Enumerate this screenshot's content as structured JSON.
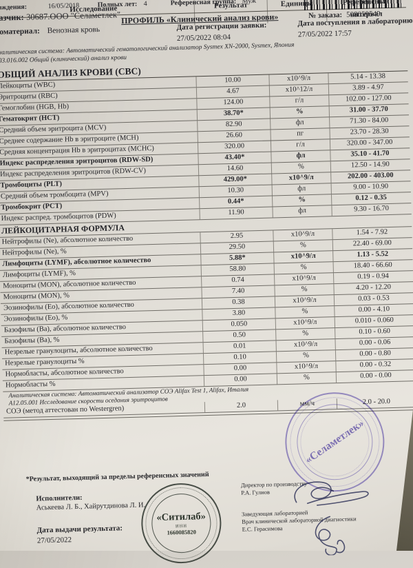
{
  "header": {
    "birth_label": "рождения:",
    "birth_value": "16/05/2018",
    "age_label": "Полных лет:",
    "age_value": "4",
    "group_label": "Референсная группа:",
    "group_value": "Муж",
    "customer_label": "казчик:",
    "customer_value": "30687.ООО \"Селаметлек\"",
    "order_label": "№ заказа:",
    "order_value": "508059549"
  },
  "table": {
    "columns": {
      "research": "Исследование",
      "result": "Результат",
      "units": "Единицы",
      "ref": "Референсный интервал"
    },
    "profile_title": "ПРОФИЛЬ «Клинический анализ крови»",
    "biomaterial_label": "иоматериал:",
    "biomaterial_value": "Венозная кровь",
    "reg_date_label": "Дата регистрации заявки:",
    "reg_date_value": "27/05/2022 08:04",
    "recv_date_label": "Дата поступления в лабораторию:",
    "recv_date_value": "27/05/2022 17:57",
    "analytic_system_1": "налитическая система: Автоматический гематологический анализатор Sysmex XN-2000, Sysmex, Япония",
    "method_code_1": "03.016.002 Общий (клинический) анализ крови",
    "section_cbc": "ОБЩИЙ АНАЛИЗ КРОВИ (СВС)",
    "rows": [
      {
        "type": "data",
        "bold": false,
        "label": "Лейкоциты (WBC)",
        "result": "10.00",
        "units": "х10^9/л",
        "ref": "5.14 - 13.38"
      },
      {
        "type": "data",
        "bold": false,
        "label": "Эритроциты (RBC)",
        "result": "4.67",
        "units": "х10^12/л",
        "ref": "3.89 - 4.97"
      },
      {
        "type": "data",
        "bold": false,
        "label": "Гемоглобин (HGB, Hb)",
        "result": "124.00",
        "units": "г/л",
        "ref": "102.00 - 127.00"
      },
      {
        "type": "data",
        "bold": true,
        "label": "Гематокрит (НСТ)",
        "result": "38.70*",
        "units": "%",
        "ref": "31.00 - 37.70"
      },
      {
        "type": "data",
        "bold": false,
        "label": "Средний объем эритроцита (MCV)",
        "result": "82.90",
        "units": "фл",
        "ref": "71.30 - 84.00"
      },
      {
        "type": "data",
        "bold": false,
        "label": "Среднее содержание Hb в эритроците (МСН)",
        "result": "26.60",
        "units": "пг",
        "ref": "23.70 - 28.30"
      },
      {
        "type": "data",
        "bold": false,
        "label": "Средняя концентрация Hb в эритроцитах (МСНС)",
        "result": "320.00",
        "units": "г/л",
        "ref": "320.00 - 347.00"
      },
      {
        "type": "data",
        "bold": true,
        "label": "Индекс распределения эритроцитов (RDW-SD)",
        "result": "43.40*",
        "units": "фл",
        "ref": "35.10 - 41.70"
      },
      {
        "type": "data",
        "bold": false,
        "label": "Индекс распределения эритроцитов (RDW-CV)",
        "result": "14.60",
        "units": "%",
        "ref": "12.50 - 14.90"
      },
      {
        "type": "data",
        "bold": true,
        "label": "Тромбоциты (PLT)",
        "result": "429.00*",
        "units": "х10^9/л",
        "ref": "202.00 - 403.00"
      },
      {
        "type": "data",
        "bold": false,
        "label": "Средний объем тромбоцита (MPV)",
        "result": "10.30",
        "units": "фл",
        "ref": "9.00 - 10.90"
      },
      {
        "type": "data",
        "bold": true,
        "label": "Тромбокрит (РСТ)",
        "result": "0.44*",
        "units": "%",
        "ref": "0.12 - 0.35"
      },
      {
        "type": "data",
        "bold": false,
        "label": "Индекс распред. тромбоцитов (PDW)",
        "result": "11.90",
        "units": "фл",
        "ref": "9.30 - 16.70"
      },
      {
        "type": "section",
        "text": "ЛЕЙКОЦИТАРНАЯ ФОРМУЛА"
      },
      {
        "type": "data",
        "bold": false,
        "label": "Нейтрофилы (Ne), абсолютное количество",
        "result": "2.95",
        "units": "х10^9/л",
        "ref": "1.54 - 7.92"
      },
      {
        "type": "data",
        "bold": false,
        "label": "Нейтрофилы (Ne), %",
        "result": "29.50",
        "units": "%",
        "ref": "22.40 - 69.00"
      },
      {
        "type": "data",
        "bold": true,
        "label": "Лимфоциты (LYMF), абсолютное количество",
        "result": "5.88*",
        "units": "х10^9/л",
        "ref": "1.13 - 5.52"
      },
      {
        "type": "data",
        "bold": false,
        "label": "Лимфоциты (LYMF), %",
        "result": "58.80",
        "units": "%",
        "ref": "18.40 - 66.60"
      },
      {
        "type": "data",
        "bold": false,
        "label": "Моноциты (MON), абсолютное количество",
        "result": "0.74",
        "units": "х10^9/л",
        "ref": "0.19 - 0.94"
      },
      {
        "type": "data",
        "bold": false,
        "label": "Моноциты (MON), %",
        "result": "7.40",
        "units": "%",
        "ref": "4.20 - 12.20"
      },
      {
        "type": "data",
        "bold": false,
        "label": "Эозинофилы (Ео), абсолютное количество",
        "result": "0.38",
        "units": "х10^9/л",
        "ref": "0.03 - 0.53"
      },
      {
        "type": "data",
        "bold": false,
        "label": "Эозинофилы (Ео), %",
        "result": "3.80",
        "units": "%",
        "ref": "0.00 - 4.10"
      },
      {
        "type": "data",
        "bold": false,
        "label": "Базофилы (Ва), абсолютное количество",
        "result": "0.050",
        "units": "х10^9/л",
        "ref": "0.010 - 0.060"
      },
      {
        "type": "data",
        "bold": false,
        "label": "Базофилы (Ва), %",
        "result": "0.50",
        "units": "%",
        "ref": "0.10 - 0.60"
      },
      {
        "type": "data",
        "bold": false,
        "label": "Незрелые гранулоциты, абсолютное количество",
        "result": "0.01",
        "units": "х10^9/л",
        "ref": "0.00 - 0.06"
      },
      {
        "type": "data",
        "bold": false,
        "label": "Незрелые гранулоциты %",
        "result": "0.10",
        "units": "%",
        "ref": "0.00 - 0.80"
      },
      {
        "type": "data",
        "bold": false,
        "label": "Нормобласты, абсолютное количество",
        "result": "0.00",
        "units": "х10^9/л",
        "ref": "0.00 - 0.32"
      },
      {
        "type": "data",
        "bold": false,
        "label": "Нормобласты %",
        "result": "0.00",
        "units": "%",
        "ref": "0.00 - 0.00"
      },
      {
        "type": "italic",
        "text": "Аналитическая система: Автоматический анализатор СОЭ Alifax Test 1, Alifax, Италия"
      },
      {
        "type": "italic",
        "text": "А12.05.001 Исследование скорости оседания эритроцитов"
      },
      {
        "type": "data",
        "bold": false,
        "label": "СОЭ (метод аттестован по Westergren)",
        "result": "2.0",
        "units": "мм/ч",
        "ref": "2.0 - 20.0"
      }
    ]
  },
  "footer": {
    "note": "*Результат, выходящий за пределы референсных значений",
    "executors_label": "Исполнители:",
    "executors_value": "Аськеева Л. Б., Хайрутдинова Л. И.",
    "issue_label": "Дата выдачи результата:",
    "issue_value": "27/05/2022",
    "director_title": "Директор по производству",
    "director_name": "Р.А. Гулнов",
    "head_title1": "Заведующая лабораторией",
    "head_title2": "Врач клинической лабораторной диагностики",
    "head_name": "Е.С. Герасимова"
  },
  "stamps": {
    "citilab_title": "«Ситилаб»",
    "citilab_inn_label": "ИНН",
    "citilab_inn_value": "1660085820",
    "sela_title": "«Селаметлек»",
    "purple_color": "#7063af",
    "dark_color": "#2d342d"
  }
}
